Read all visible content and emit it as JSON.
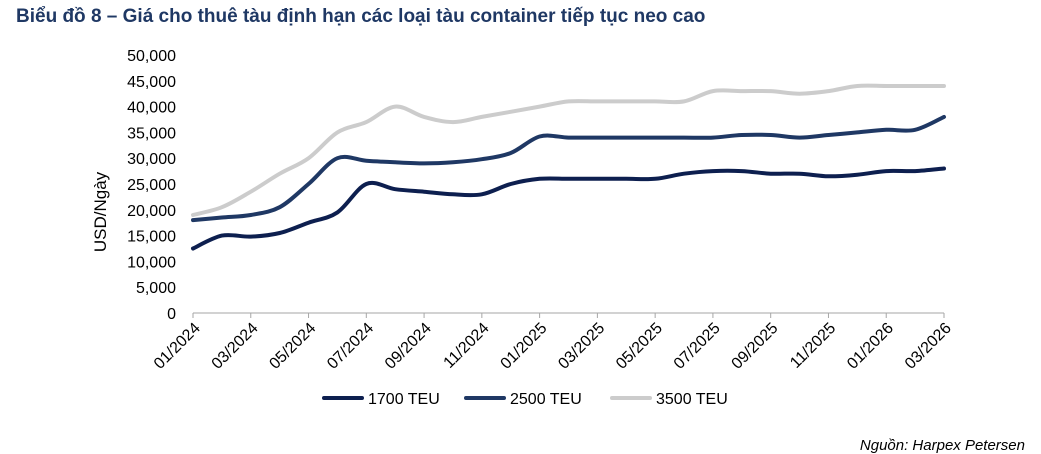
{
  "title": "Biểu đồ 8 – Giá cho thuê tàu định hạn các loại tàu container tiếp tục neo cao",
  "source": "Nguồn: Harpex Petersen",
  "chart_data": {
    "type": "line",
    "ylabel": "USD/Ngày",
    "ylim": [
      0,
      50000
    ],
    "y_ticks": [
      "0",
      "5,000",
      "10,000",
      "15,000",
      "20,000",
      "25,000",
      "30,000",
      "35,000",
      "40,000",
      "45,000",
      "50,000"
    ],
    "y_tick_values": [
      0,
      5000,
      10000,
      15000,
      20000,
      25000,
      30000,
      35000,
      40000,
      45000,
      50000
    ],
    "x_ticks": [
      "01/2024",
      "03/2024",
      "05/2024",
      "07/2024",
      "09/2024",
      "11/2024",
      "01/2025",
      "03/2025",
      "05/2025",
      "07/2025",
      "09/2025",
      "11/2025",
      "01/2026",
      "03/2026"
    ],
    "x": [
      "01/2024",
      "02/2024",
      "03/2024",
      "04/2024",
      "05/2024",
      "06/2024",
      "07/2024",
      "08/2024",
      "09/2024",
      "10/2024",
      "11/2024",
      "12/2024",
      "01/2025",
      "02/2025",
      "03/2025",
      "04/2025",
      "05/2025",
      "06/2025",
      "07/2025",
      "08/2025",
      "09/2025",
      "10/2025",
      "11/2025",
      "12/2025",
      "01/2026",
      "02/2026",
      "03/2026"
    ],
    "legend_position": "bottom",
    "grid": false,
    "series": [
      {
        "name": "1700 TEU",
        "color": "#0d1f4f",
        "values": [
          12500,
          15000,
          14800,
          15500,
          17500,
          19500,
          25000,
          24000,
          23500,
          23000,
          23000,
          25000,
          26000,
          26000,
          26000,
          26000,
          26000,
          27000,
          27500,
          27500,
          27000,
          27000,
          26500,
          26800,
          27500,
          27500,
          28000
        ]
      },
      {
        "name": "2500 TEU",
        "color": "#1f3864",
        "values": [
          18000,
          18500,
          19000,
          20500,
          25000,
          30000,
          29500,
          29200,
          29000,
          29200,
          29800,
          31000,
          34200,
          34000,
          34000,
          34000,
          34000,
          34000,
          34000,
          34500,
          34500,
          34000,
          34500,
          35000,
          35500,
          35500,
          38000
        ]
      },
      {
        "name": "3500 TEU",
        "color": "#cccccc",
        "values": [
          19000,
          20500,
          23500,
          27000,
          30000,
          35000,
          37000,
          40000,
          38000,
          37000,
          38000,
          39000,
          40000,
          41000,
          41000,
          41000,
          41000,
          41000,
          43000,
          43000,
          43000,
          42500,
          43000,
          44000,
          44000,
          44000,
          44000
        ]
      }
    ]
  }
}
